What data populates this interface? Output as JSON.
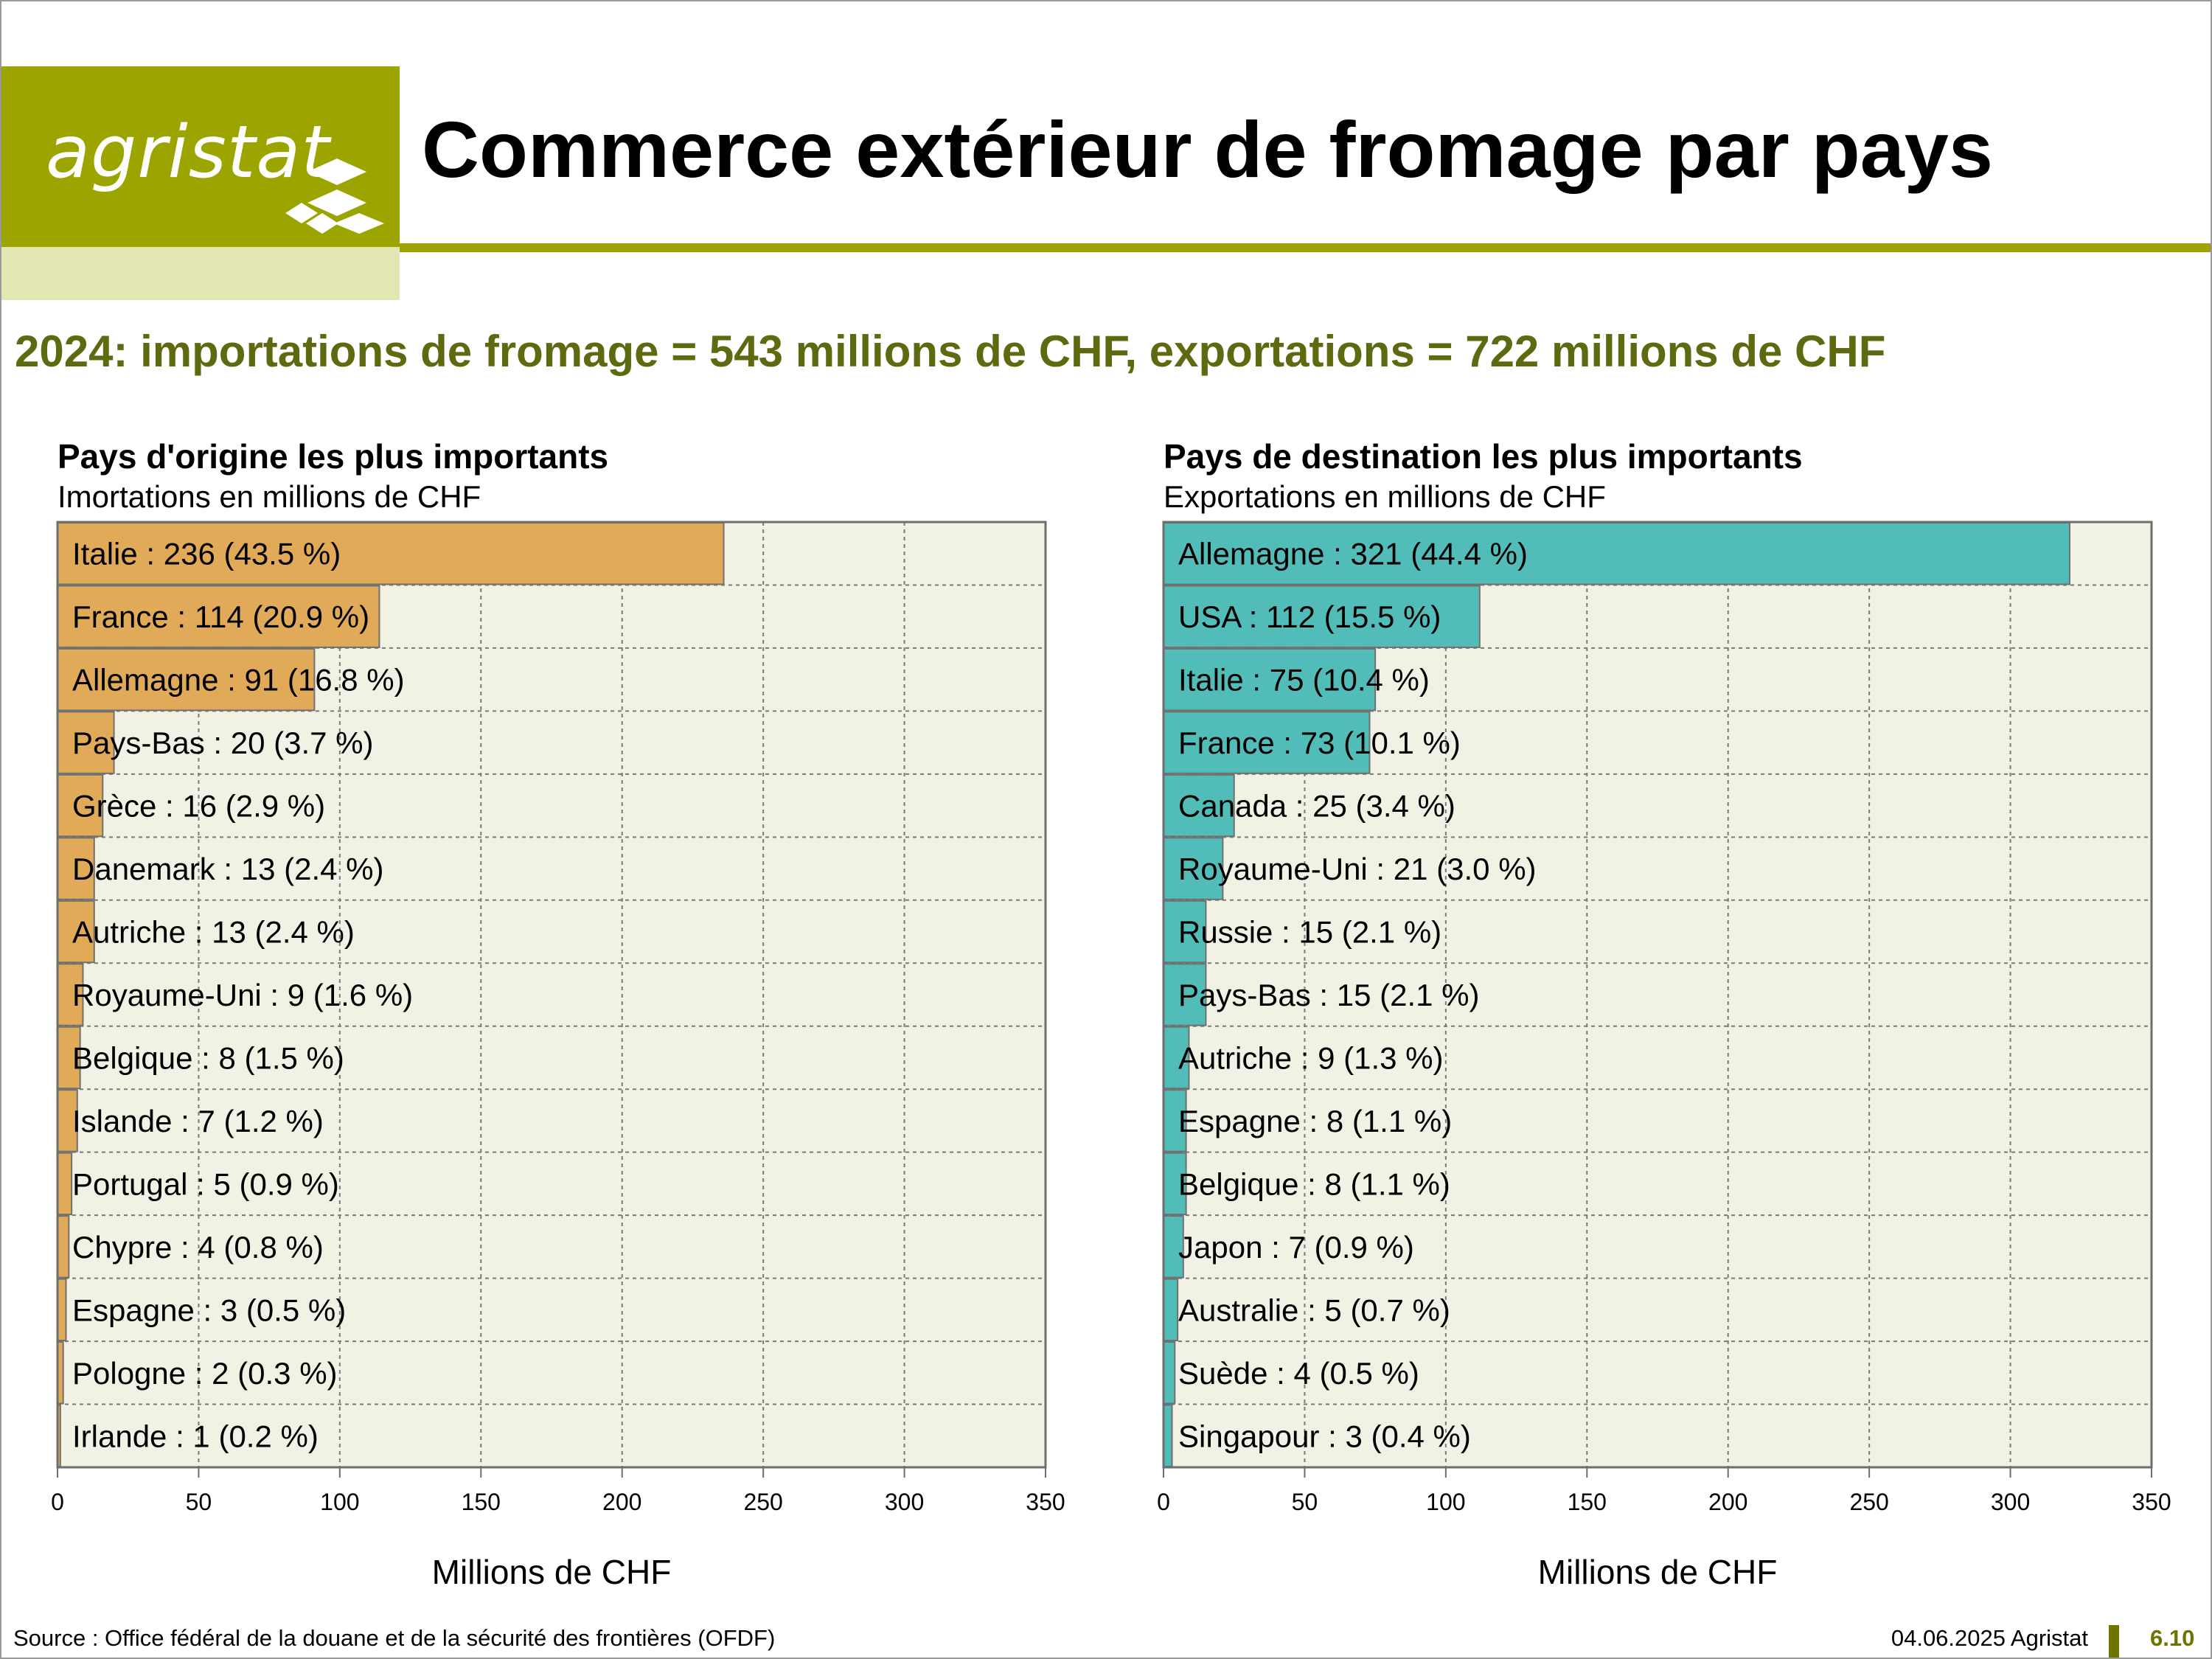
{
  "logo": {
    "text": "agristat"
  },
  "header": {
    "title": "Commerce extérieur de fromage par pays",
    "subtitle": "2024: importations de fromage = 543 millions de CHF, exportations = 722 millions de CHF"
  },
  "colors": {
    "brand": "#9ca400",
    "brand_light": "#e2e6b3",
    "plot_bg": "#f2f2e4",
    "imports_bar": "#e0aa58",
    "exports_bar": "#52bdb8",
    "subtitle": "#5f6a10"
  },
  "footer": {
    "source": "Source : Office fédéral de la douane et de la sécurité des frontières (OFDF)",
    "date": "04.06.2025 Agristat",
    "page": "6.10"
  },
  "chart_data": [
    {
      "type": "bar",
      "orientation": "horizontal",
      "title": "Pays d'origine les plus importants",
      "subtitle": "Imortations en millions de CHF",
      "xlabel": "Millions de CHF",
      "xlim": [
        0,
        350
      ],
      "xticks": [
        0,
        50,
        100,
        150,
        200,
        250,
        300,
        350
      ],
      "grid": true,
      "color": "#e0aa58",
      "categories": [
        "Italie",
        "France",
        "Allemagne",
        "Pays-Bas",
        "Grèce",
        "Danemark",
        "Autriche",
        "Royaume-Uni",
        "Belgique",
        "Islande",
        "Portugal",
        "Chypre",
        "Espagne",
        "Pologne",
        "Irlande"
      ],
      "values": [
        236,
        114,
        91,
        20,
        16,
        13,
        13,
        9,
        8,
        7,
        5,
        4,
        3,
        2,
        1
      ],
      "labels": [
        "Italie : 236 (43.5 %)",
        "France : 114 (20.9 %)",
        "Allemagne : 91 (16.8 %)",
        "Pays-Bas : 20 (3.7 %)",
        "Grèce : 16 (2.9 %)",
        "Danemark : 13 (2.4 %)",
        "Autriche : 13 (2.4 %)",
        "Royaume-Uni : 9 (1.6 %)",
        "Belgique : 8 (1.5 %)",
        "Islande : 7 (1.2 %)",
        "Portugal : 5 (0.9 %)",
        "Chypre : 4 (0.8 %)",
        "Espagne : 3 (0.5 %)",
        "Pologne : 2 (0.3 %)",
        "Irlande : 1 (0.2 %)"
      ]
    },
    {
      "type": "bar",
      "orientation": "horizontal",
      "title": "Pays de destination les plus importants",
      "subtitle": "Exportations en millions de CHF",
      "xlabel": "Millions de CHF",
      "xlim": [
        0,
        350
      ],
      "xticks": [
        0,
        50,
        100,
        150,
        200,
        250,
        300,
        350
      ],
      "grid": true,
      "color": "#52bdb8",
      "categories": [
        "Allemagne",
        "USA",
        "Italie",
        "France",
        "Canada",
        "Royaume-Uni",
        "Russie",
        "Pays-Bas",
        "Autriche",
        "Espagne",
        "Belgique",
        "Japon",
        "Australie",
        "Suède",
        "Singapour"
      ],
      "values": [
        321,
        112,
        75,
        73,
        25,
        21,
        15,
        15,
        9,
        8,
        8,
        7,
        5,
        4,
        3
      ],
      "labels": [
        "Allemagne : 321 (44.4 %)",
        "USA : 112 (15.5 %)",
        "Italie : 75 (10.4 %)",
        "France : 73 (10.1 %)",
        "Canada : 25 (3.4 %)",
        "Royaume-Uni : 21 (3.0 %)",
        "Russie : 15 (2.1 %)",
        "Pays-Bas : 15 (2.1 %)",
        "Autriche : 9 (1.3 %)",
        "Espagne : 8 (1.1 %)",
        "Belgique : 8 (1.1 %)",
        "Japon : 7 (0.9 %)",
        "Australie : 5 (0.7 %)",
        "Suède : 4 (0.5 %)",
        "Singapour : 3 (0.4 %)"
      ]
    }
  ]
}
